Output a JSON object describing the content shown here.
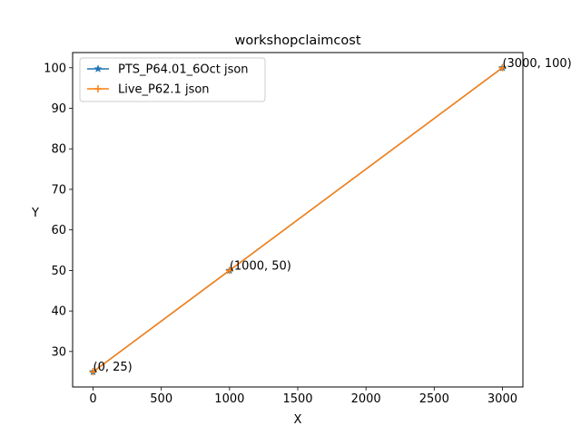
{
  "chart_data": {
    "type": "line",
    "title": "workshopclaimcost",
    "xlabel": "X",
    "ylabel": "Y",
    "xlim": [
      -150,
      3150
    ],
    "ylim": [
      21.25,
      103.75
    ],
    "xticks": [
      0,
      500,
      1000,
      1500,
      2000,
      2500,
      3000
    ],
    "yticks": [
      30,
      40,
      50,
      60,
      70,
      80,
      90,
      100
    ],
    "grid": false,
    "legend_position": "upper-left",
    "series": [
      {
        "name": "PTS_P64.01_6Oct json",
        "marker": "star",
        "color": "#1f77b4",
        "x": [
          0,
          1000,
          3000
        ],
        "y": [
          25,
          50,
          100
        ]
      },
      {
        "name": "Live_P62.1 json",
        "marker": "plus",
        "color": "#ff7f0e",
        "x": [
          0,
          1000,
          3000
        ],
        "y": [
          25,
          50,
          100
        ]
      }
    ],
    "annotations": [
      {
        "text": "(0, 25)",
        "x": 0,
        "y": 25
      },
      {
        "text": "(1000, 50)",
        "x": 1000,
        "y": 50
      },
      {
        "text": "(3000, 100)",
        "x": 3000,
        "y": 100
      }
    ]
  }
}
